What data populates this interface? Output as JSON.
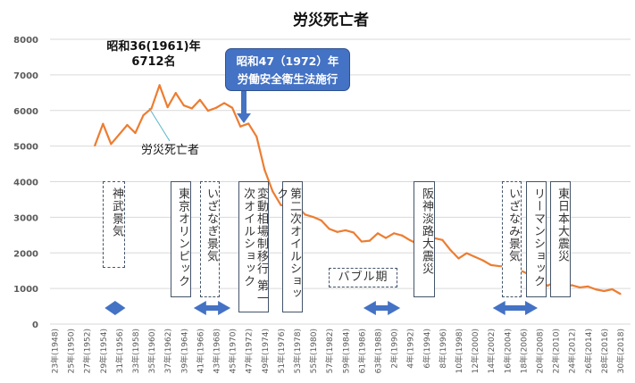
{
  "chart_data": {
    "type": "line",
    "title": "労災死亡者",
    "xlabel": "",
    "ylabel": "",
    "ylim": [
      0,
      8000
    ],
    "yticks": [
      "0",
      "1000",
      "2000",
      "3000",
      "4000",
      "5000",
      "6000",
      "7000",
      "8000"
    ],
    "grid": true,
    "xtick_labels": [
      "23年(1948)",
      "25年(1950)",
      "27年(1952)",
      "29年(1954)",
      "31年(1956)",
      "33年(1958)",
      "35年(1960)",
      "37年(1962)",
      "39年(1964)",
      "41年(1966)",
      "43年(1968)",
      "45年(1970)",
      "47年(1972)",
      "49年(1974)",
      "51年(1976)",
      "53年(1978)",
      "55年(1980)",
      "57年(1982)",
      "59年(1984)",
      "61年(1986)",
      "63年(1988)",
      "2年(1990)",
      "4年(1992)",
      "6年(1994)",
      "8年(1996)",
      "10年(1998)",
      "12年(2000)",
      "14年(2002)",
      "16年(2004)",
      "18年(2006)",
      "20年(2008)",
      "22年(2010)",
      "24年(2012)",
      "26年(2014)",
      "28年(2016)",
      "30年(2018)"
    ],
    "x_range": [
      1948,
      2018
    ],
    "series": [
      {
        "name": "労災死亡者",
        "color": "#ED7D31",
        "x": [
          1953,
          1954,
          1955,
          1956,
          1957,
          1958,
          1959,
          1960,
          1961,
          1962,
          1963,
          1964,
          1965,
          1966,
          1967,
          1968,
          1969,
          1970,
          1971,
          1972,
          1973,
          1974,
          1975,
          1976,
          1977,
          1978,
          1979,
          1980,
          1981,
          1982,
          1983,
          1984,
          1985,
          1986,
          1987,
          1988,
          1989,
          1990,
          1991,
          1992,
          1993,
          1994,
          1995,
          1996,
          1997,
          1998,
          1999,
          2000,
          2001,
          2002,
          2003,
          2004,
          2005,
          2006,
          2007,
          2008,
          2009,
          2010,
          2011,
          2012,
          2013,
          2014,
          2015,
          2016,
          2017,
          2018
        ],
        "values": [
          5017,
          5625,
          5058,
          5325,
          5592,
          5367,
          5867,
          6058,
          6712,
          6092,
          6492,
          6142,
          6058,
          6300,
          5992,
          6075,
          6208,
          6075,
          5550,
          5631,
          5269,
          4330,
          3725,
          3345,
          3302,
          3326,
          3077,
          3009,
          2912,
          2674,
          2588,
          2635,
          2572,
          2318,
          2342,
          2549,
          2419,
          2550,
          2489,
          2354,
          2245,
          2301,
          2414,
          2363,
          2078,
          1844,
          1992,
          1889,
          1790,
          1658,
          1628,
          1620,
          1514,
          1472,
          1357,
          1268,
          1075,
          1195,
          1024,
          1093,
          1030,
          1057,
          972,
          928,
          978,
          850
        ]
      }
    ],
    "annotations": {
      "peak": {
        "line1": "昭和36(1961)年",
        "line2": "6712名"
      },
      "series_label": "労災死亡者",
      "callout": {
        "line1": "昭和47（1972）年",
        "line2": "労働安全衛生法施行",
        "year": 1972,
        "color": "#4472C4"
      },
      "events": [
        {
          "label": "神武景気",
          "style": "dashed"
        },
        {
          "label": "東京オリンピック",
          "style": "solid"
        },
        {
          "label": "いざなぎ景気",
          "style": "dashed"
        },
        {
          "label": "変動相場制移行",
          "style": "solid"
        },
        {
          "label": "第一次オイルショック",
          "style": "solid"
        },
        {
          "label": "第二次オイルショック",
          "style": "solid"
        },
        {
          "label": "バブル期",
          "style": "dashed"
        },
        {
          "label": "阪神淡路大震災",
          "style": "solid"
        },
        {
          "label": "いざなみ景気",
          "style": "dashed"
        },
        {
          "label": "リーマンショック",
          "style": "solid"
        },
        {
          "label": "東日本大震災",
          "style": "solid"
        }
      ],
      "period_arrows": [
        {
          "name": "jinmu",
          "from": 1954,
          "to": 1957
        },
        {
          "name": "izanagi",
          "from": 1965,
          "to": 1970
        },
        {
          "name": "bubble",
          "from": 1986,
          "to": 1991
        },
        {
          "name": "izanami",
          "from": 2002,
          "to": 2008
        }
      ],
      "arrow_color": "#4472C4"
    }
  }
}
